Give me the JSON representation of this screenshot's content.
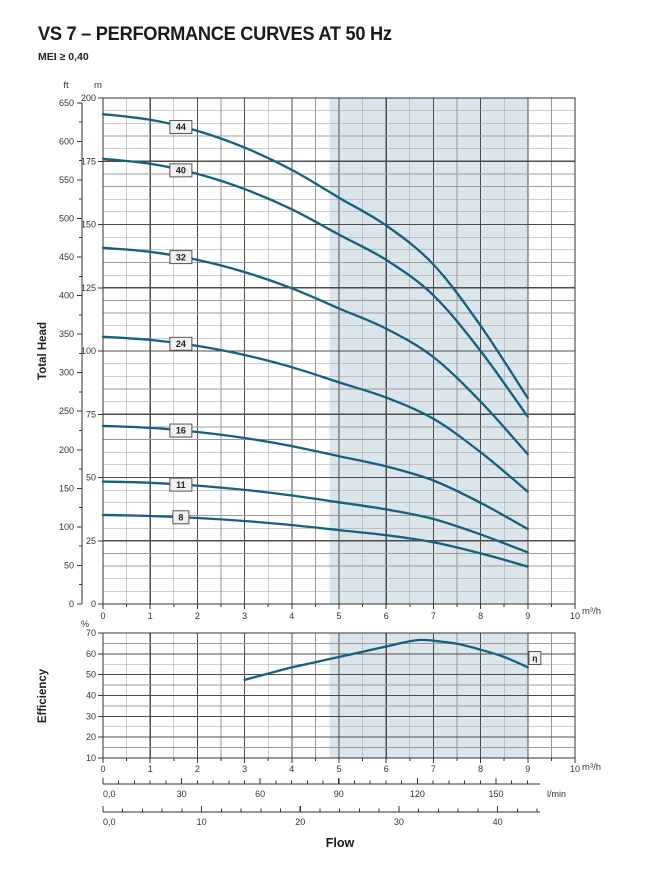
{
  "page": {
    "title": "VS 7 – PERFORMANCE CURVES AT 50 Hz",
    "subtitle": "MEI ≥ 0,40"
  },
  "labels": {
    "y_unit_ft": "ft",
    "y_unit_m": "m",
    "head_axis": "Total Head",
    "eff_axis": "Efficiency",
    "percent": "%",
    "flow_unit": "m³/h",
    "flow_title": "Flow"
  },
  "colors": {
    "curve": "#15607f",
    "shade": "#dbe5ec",
    "grid_minor": "#999999",
    "grid_major": "#4d4d4d",
    "frame": "#333333",
    "text": "#333333",
    "label_box_bg": "#f0f0f0",
    "label_box_border": "#555555"
  },
  "chart_data": [
    {
      "type": "line",
      "name": "head_curves",
      "title": "Total Head vs Flow (pump stage curves)",
      "xlabel": "Flow",
      "ylabel": "Total Head",
      "x_unit": "m³/h",
      "y_units": [
        "ft",
        "m"
      ],
      "xlim": [
        0,
        10
      ],
      "ylim_m": [
        0,
        200
      ],
      "ylim_ft": [
        0,
        650
      ],
      "xticks": [
        0,
        1,
        2,
        3,
        4,
        5,
        6,
        7,
        8,
        9,
        10
      ],
      "yticks_m": [
        0,
        25,
        50,
        75,
        100,
        125,
        150,
        175,
        200
      ],
      "yticks_ft": [
        0,
        50,
        100,
        150,
        200,
        250,
        300,
        350,
        400,
        450,
        500,
        550,
        600,
        650
      ],
      "shaded_x": [
        4.8,
        9.0
      ],
      "x": [
        0,
        1,
        2,
        3,
        4,
        5,
        6,
        7,
        8,
        9
      ],
      "series": [
        {
          "name": "44",
          "values": [
            193.6,
            191.4,
            187.0,
            180.4,
            171.6,
            160.6,
            149.6,
            134.2,
            110.0,
            81.4
          ]
        },
        {
          "name": "40",
          "values": [
            176.0,
            174.0,
            170.0,
            164.0,
            156.0,
            146.0,
            136.0,
            122.0,
            100.0,
            74.0
          ]
        },
        {
          "name": "32",
          "values": [
            140.8,
            139.2,
            136.0,
            131.2,
            124.8,
            116.8,
            108.8,
            97.6,
            80.0,
            59.2
          ]
        },
        {
          "name": "24",
          "values": [
            105.6,
            104.4,
            102.0,
            98.4,
            93.6,
            87.6,
            81.6,
            73.2,
            60.0,
            44.4
          ]
        },
        {
          "name": "16",
          "values": [
            70.4,
            69.6,
            68.0,
            65.6,
            62.4,
            58.4,
            54.4,
            48.8,
            40.0,
            29.6
          ]
        },
        {
          "name": "11",
          "values": [
            48.4,
            47.9,
            46.8,
            45.1,
            42.9,
            40.2,
            37.4,
            33.6,
            27.5,
            20.4
          ]
        },
        {
          "name": "8",
          "values": [
            35.2,
            34.8,
            34.0,
            32.8,
            31.2,
            29.2,
            27.2,
            24.4,
            20.0,
            14.8
          ]
        }
      ],
      "series_label_x": 1.65
    },
    {
      "type": "line",
      "name": "efficiency",
      "title": "Efficiency vs Flow",
      "xlabel": "Flow",
      "ylabel": "Efficiency",
      "x_unit": "m³/h",
      "y_unit": "%",
      "xlim": [
        0,
        10
      ],
      "ylim": [
        10,
        70
      ],
      "xticks": [
        0,
        1,
        2,
        3,
        4,
        5,
        6,
        7,
        8,
        9,
        10
      ],
      "yticks": [
        10,
        20,
        30,
        40,
        50,
        60,
        70
      ],
      "shaded_x": [
        4.8,
        9.0
      ],
      "x": [
        3,
        3.5,
        4,
        4.5,
        5,
        5.5,
        6,
        6.5,
        6.75,
        7,
        7.5,
        8,
        8.5,
        9
      ],
      "values": [
        47.5,
        50.5,
        53.5,
        56,
        58.5,
        61,
        63.5,
        66,
        66.7,
        66.3,
        64.8,
        62,
        58.5,
        53.5
      ],
      "curve_label": "η",
      "curve_label_pos": [
        9.15,
        58
      ]
    }
  ],
  "flow_scales": {
    "lmin": {
      "unit": "l/min",
      "tick_labels": [
        "0,0",
        "30",
        "60",
        "90",
        "120",
        "150"
      ],
      "tick_values": [
        0,
        30,
        60,
        90,
        120,
        150
      ],
      "max": 166.8,
      "minor_step": 6
    },
    "gpm": {
      "tick_labels": [
        "0,0",
        "10",
        "20",
        "30",
        "40"
      ],
      "tick_values": [
        0,
        10,
        20,
        30,
        40
      ],
      "max": 44.3,
      "minor_step": 2
    },
    "title": "Flow"
  }
}
